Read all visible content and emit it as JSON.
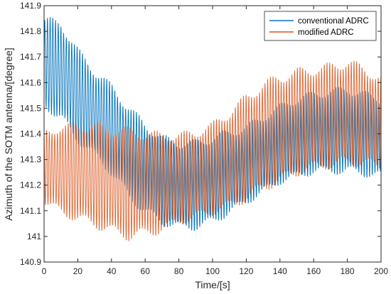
{
  "chart_data": {
    "type": "line",
    "title": "",
    "xlabel": "Time/[s]",
    "ylabel": "Azimuth of the SOTM antenna/[degree]",
    "xlim": [
      0,
      200
    ],
    "ylim": [
      140.9,
      141.9
    ],
    "xticks": [
      "0",
      "20",
      "40",
      "60",
      "80",
      "100",
      "120",
      "140",
      "160",
      "180",
      "200"
    ],
    "yticks": [
      "140.9",
      "141",
      "141.1",
      "141.2",
      "141.3",
      "141.4",
      "141.5",
      "141.6",
      "141.7",
      "141.8",
      "141.9"
    ],
    "grid": false,
    "legend_position": "top-right",
    "oscillation_period_s": 1.6,
    "series": [
      {
        "name": "conventional ADRC",
        "color": "#0072BD",
        "envelope_x": [
          0,
          10,
          20,
          30,
          40,
          50,
          60,
          70,
          80,
          90,
          100,
          110,
          120,
          130,
          140,
          150,
          160,
          170,
          180,
          190,
          200
        ],
        "upper": [
          141.86,
          141.85,
          141.74,
          141.66,
          141.6,
          141.52,
          141.45,
          141.4,
          141.38,
          141.38,
          141.4,
          141.42,
          141.44,
          141.48,
          141.52,
          141.55,
          141.57,
          141.58,
          141.59,
          141.57,
          141.55
        ],
        "lower": [
          141.5,
          141.44,
          141.36,
          141.3,
          141.23,
          141.14,
          141.08,
          141.04,
          141.02,
          141.02,
          141.04,
          141.08,
          141.12,
          141.16,
          141.2,
          141.22,
          141.24,
          141.24,
          141.24,
          141.23,
          141.22
        ]
      },
      {
        "name": "modified ADRC",
        "color": "#D95319",
        "envelope_x": [
          0,
          10,
          20,
          30,
          40,
          50,
          60,
          70,
          80,
          90,
          100,
          110,
          120,
          130,
          140,
          150,
          160,
          170,
          180,
          190,
          200
        ],
        "upper": [
          141.42,
          141.44,
          141.45,
          141.45,
          141.44,
          141.43,
          141.42,
          141.41,
          141.41,
          141.42,
          141.45,
          141.5,
          141.56,
          141.61,
          141.64,
          141.66,
          141.67,
          141.68,
          141.7,
          141.67,
          141.63
        ],
        "lower": [
          141.12,
          141.08,
          141.05,
          141.03,
          141.0,
          140.98,
          140.99,
          141.01,
          141.04,
          141.06,
          141.08,
          141.1,
          141.13,
          141.17,
          141.2,
          141.23,
          141.25,
          141.26,
          141.27,
          141.27,
          141.25
        ]
      }
    ]
  }
}
